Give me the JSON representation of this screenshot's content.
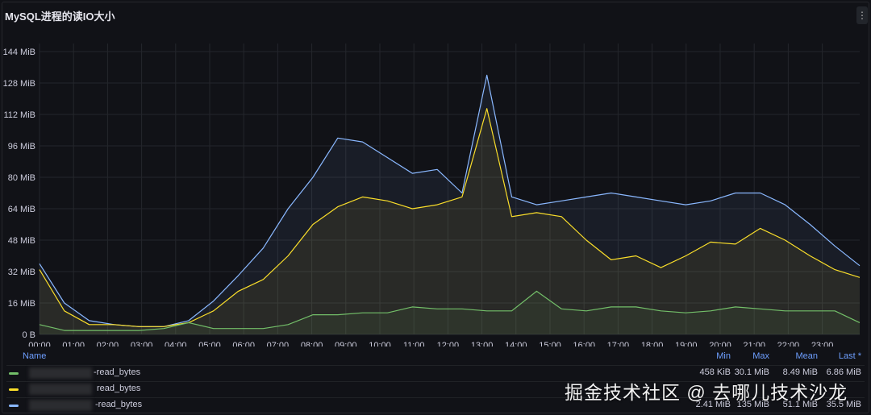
{
  "panel": {
    "title": "MySQL进程的读IO大小",
    "menu_glyph": "⋮"
  },
  "chart_data": {
    "type": "line",
    "title": "MySQL进程的读IO大小",
    "xlabel": "",
    "ylabel": "",
    "ylim": [
      0,
      144
    ],
    "y_unit": "MiB",
    "ytick_labels": [
      "0 B",
      "16 MiB",
      "32 MiB",
      "48 MiB",
      "64 MiB",
      "80 MiB",
      "96 MiB",
      "112 MiB",
      "128 MiB",
      "144 MiB"
    ],
    "xtick_labels": [
      "00:00",
      "01:00",
      "02:00",
      "03:00",
      "04:00",
      "05:00",
      "06:00",
      "07:00",
      "08:00",
      "09:00",
      "10:00",
      "11:00",
      "12:00",
      "13:00",
      "14:00",
      "15:00",
      "16:00",
      "17:00",
      "18:00",
      "19:00",
      "20:00",
      "21:00",
      "22:00",
      "23:00"
    ],
    "grid": true,
    "legend_placement": "bottom",
    "series": [
      {
        "name": "-read_bytes",
        "color": "#73bf69",
        "values": [
          5,
          2,
          2,
          2,
          2,
          3,
          6,
          3,
          3,
          3,
          5,
          10,
          10,
          11,
          11,
          14,
          13,
          13,
          12,
          12,
          22,
          13,
          12,
          14,
          14,
          12,
          11,
          12,
          14,
          13,
          12,
          12,
          12,
          6
        ]
      },
      {
        "name": "read_bytes",
        "color": "#fade2a",
        "values": [
          33,
          12,
          5,
          5,
          4,
          4,
          6,
          12,
          22,
          28,
          40,
          56,
          65,
          70,
          68,
          64,
          66,
          70,
          115,
          60,
          62,
          60,
          48,
          38,
          40,
          34,
          40,
          47,
          46,
          54,
          48,
          40,
          33,
          29
        ]
      },
      {
        "name": "-read_bytes",
        "color": "#8ab8ff",
        "values": [
          36,
          16,
          7,
          5,
          4,
          4,
          7,
          17,
          30,
          44,
          64,
          80,
          100,
          98,
          90,
          82,
          84,
          72,
          132,
          70,
          66,
          68,
          70,
          72,
          70,
          68,
          66,
          68,
          72,
          72,
          66,
          56,
          45,
          35
        ]
      }
    ]
  },
  "legend": {
    "headers": {
      "name": "Name",
      "min": "Min",
      "max": "Max",
      "mean": "Mean",
      "last": "Last *"
    },
    "rows": [
      {
        "label": "-read_bytes",
        "color": "#73bf69",
        "min": "458 KiB",
        "max": "30.1 MiB",
        "mean": "8.49 MiB",
        "last": "6.86 MiB"
      },
      {
        "label": "read_bytes",
        "color": "#fade2a",
        "min": "",
        "max": "",
        "mean": "",
        "last": ""
      },
      {
        "label": "-read_bytes",
        "color": "#8ab8ff",
        "min": "2.41 MiB",
        "max": "135 MiB",
        "mean": "51.1 MiB",
        "last": "35.5 MiB"
      }
    ]
  },
  "watermark": "掘金技术社区 @ 去哪儿技术沙龙"
}
